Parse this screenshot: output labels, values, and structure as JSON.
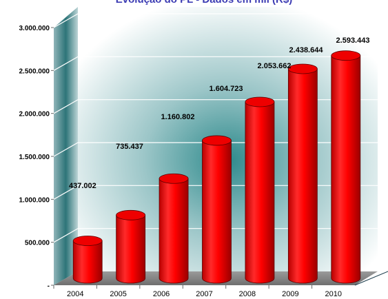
{
  "chart_data": {
    "type": "bar",
    "title": "Evolução do PL - Dados em mil (R$)",
    "categories": [
      "2004",
      "2005",
      "2006",
      "2007",
      "2008",
      "2009",
      "2010"
    ],
    "values": [
      437002,
      735437,
      1160802,
      1604723,
      2053662,
      2438644,
      2593443
    ],
    "value_labels": [
      "437.002",
      "735.437",
      "1.160.802",
      "1.604.723",
      "2.053.662",
      "2.438.644",
      "2.593.443"
    ],
    "y_ticks": [
      0,
      500000,
      1000000,
      1500000,
      2000000,
      2500000,
      3000000
    ],
    "y_tick_labels": [
      "-",
      "500.000",
      "1.000.000",
      "1.500.000",
      "2.000.000",
      "2.500.000",
      "3.000.000"
    ],
    "ylim": [
      0,
      3000000
    ],
    "xlabel": "",
    "ylabel": "",
    "grid": true,
    "legend": "none",
    "style": "3d-cylinder",
    "colors": {
      "bar": "#ff0000",
      "bar_dark": "#8b0000",
      "title": "#3b3bb3",
      "wall_glow": "#2a8a8a",
      "floor": "#8a8a8a"
    }
  }
}
